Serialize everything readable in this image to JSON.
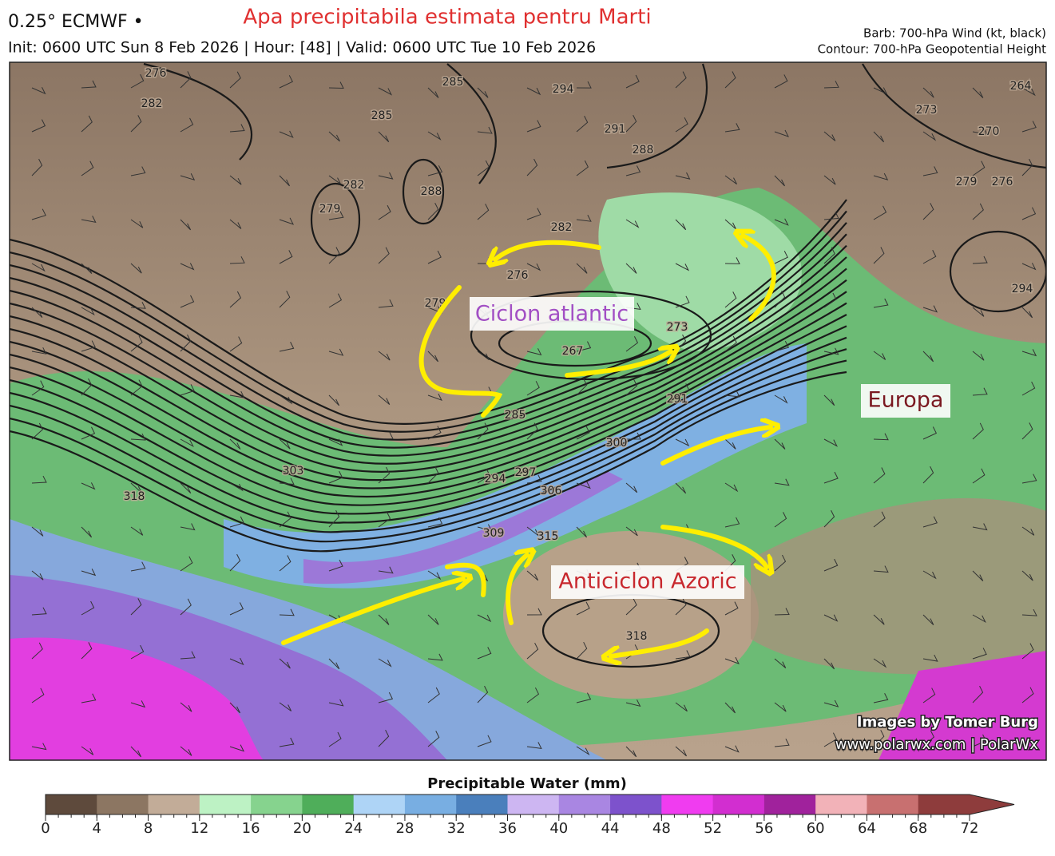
{
  "header": {
    "model": "0.25° ECMWF •",
    "title": "Apa precipitabila estimata pentru Marti",
    "info": "Init: 0600 UTC Sun 8 Feb 2026 | Hour: [48] | Valid: 0600 UTC Tue 10 Feb 2026",
    "legend": [
      "Barb: 700-hPa Wind (kt, black)",
      "Contour: 700-hPa Geopotential Height"
    ]
  },
  "annotations": [
    "Ciclon atlantic",
    "Anticiclon Azoric",
    "Europa"
  ],
  "contour_labels": [
    276,
    282,
    285,
    285,
    294,
    291,
    288,
    279,
    282,
    288,
    264,
    273,
    270,
    279,
    276,
    294,
    282,
    276,
    279,
    273,
    267,
    291,
    285,
    300,
    294,
    297,
    306,
    303,
    318,
    309,
    315,
    318
  ],
  "credits": [
    "Images by Tomer Burg",
    "www.polarwx.com | PolarWx"
  ],
  "colorbar": {
    "title": "Precipitable Water (mm)",
    "range": [
      0,
      72
    ],
    "ticks": [
      0,
      4,
      8,
      12,
      16,
      20,
      24,
      28,
      32,
      36,
      40,
      44,
      48,
      52,
      56,
      60,
      64,
      68,
      72
    ],
    "colors": [
      "#5e4a3c",
      "#8c7662",
      "#c2ac98",
      "#bdf2c4",
      "#86d38e",
      "#4fae5a",
      "#aed4f6",
      "#78aee2",
      "#4a7fbc",
      "#cdb6f2",
      "#a986e2",
      "#7d52cc",
      "#f03cf0",
      "#d22ed0",
      "#a0229c",
      "#f2b2b8",
      "#c87070",
      "#8e3c3c"
    ]
  }
}
